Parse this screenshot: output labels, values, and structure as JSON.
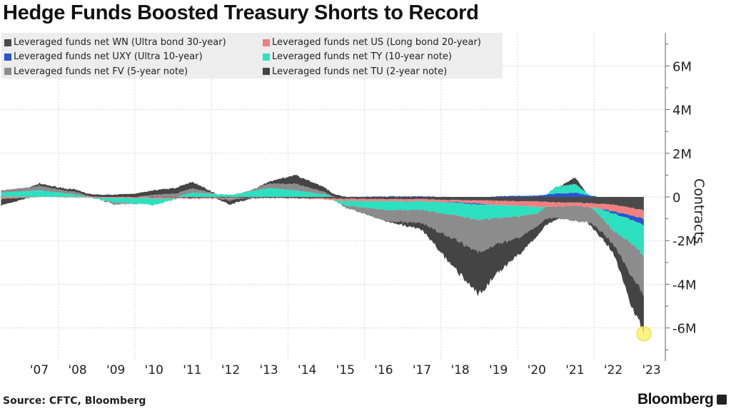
{
  "title": "Hedge Funds Boosted Treasury Shorts to Record",
  "source": "Source: CFTC, Bloomberg",
  "brand": "Bloomberg",
  "chart_data": {
    "type": "area",
    "stacked": true,
    "title": "Hedge Funds Boosted Treasury Shorts to Record",
    "xlabel": "",
    "ylabel": "Contracts",
    "ylim": [
      -7500000,
      7500000
    ],
    "xlim": [
      2006.5,
      2023.4
    ],
    "yticks": [
      6000000,
      4000000,
      2000000,
      0,
      -2000000,
      -4000000,
      -6000000
    ],
    "ytick_labels": [
      "6M",
      "4M",
      "2M",
      "0",
      "-2M",
      "-4M",
      "-6M"
    ],
    "xtick_labels": [
      "'07",
      "'08",
      "'09",
      "'10",
      "'11",
      "'12",
      "'13",
      "'14",
      "'15",
      "'16",
      "'17",
      "'18",
      "'19",
      "'20",
      "'21",
      "'22",
      "'23"
    ],
    "legend_position": "top-left",
    "grid": true,
    "annotation": "Highlighted circle at latest total (~-6.2M)",
    "x": [
      2006.5,
      2007.5,
      2008.5,
      2009.5,
      2010.5,
      2011.5,
      2012.5,
      2013.5,
      2014.2,
      2015.0,
      2015.5,
      2016.5,
      2017.5,
      2018.5,
      2019.0,
      2019.5,
      2020.0,
      2020.5,
      2021.0,
      2021.5,
      2022.0,
      2022.5,
      2023.0,
      2023.3
    ],
    "series": [
      {
        "name": "Leveraged funds net WN (Ultra bond 30-year)",
        "color": "#4a4a4a",
        "values": [
          0,
          0,
          0,
          0,
          -0.02,
          -0.03,
          -0.03,
          -0.04,
          -0.05,
          -0.06,
          -0.08,
          -0.1,
          -0.1,
          -0.15,
          -0.15,
          -0.18,
          -0.2,
          -0.2,
          -0.25,
          -0.25,
          -0.3,
          -0.35,
          -0.5,
          -0.6
        ]
      },
      {
        "name": "Leveraged funds net US (Long bond 20-year)",
        "color": "#f08080",
        "values": [
          -0.1,
          0,
          -0.03,
          -0.05,
          -0.05,
          -0.05,
          -0.03,
          -0.02,
          -0.02,
          -0.05,
          -0.1,
          -0.1,
          -0.1,
          -0.1,
          -0.15,
          -0.2,
          -0.2,
          -0.25,
          -0.2,
          -0.15,
          -0.2,
          -0.3,
          -0.35,
          -0.4
        ]
      },
      {
        "name": "Leveraged funds net UXY (Ultra 10-year)",
        "color": "#2a55d0",
        "values": [
          0,
          0,
          0,
          0,
          0,
          0,
          0,
          0,
          0,
          0,
          0,
          0.02,
          0.03,
          -0.03,
          -0.05,
          0.03,
          0.05,
          0.06,
          0.15,
          0.2,
          0.03,
          -0.1,
          -0.2,
          -0.3
        ]
      },
      {
        "name": "Leveraged funds net TY (10-year note)",
        "color": "#2de0c0",
        "values": [
          0.2,
          0.3,
          0.1,
          -0.2,
          -0.3,
          0.2,
          0.1,
          0.4,
          0.3,
          0.1,
          -0.2,
          -0.4,
          -0.4,
          -0.6,
          -0.7,
          -0.6,
          -0.5,
          -0.3,
          0.3,
          0.4,
          -0.1,
          -0.8,
          -1.1,
          -1.4
        ]
      },
      {
        "name": "Leveraged funds net FV (5-year note)",
        "color": "#8c8c8c",
        "values": [
          0.1,
          0.2,
          0.1,
          -0.1,
          0.1,
          0.2,
          -0.1,
          0.2,
          0.3,
          0.1,
          -0.1,
          -0.5,
          -0.6,
          -1.2,
          -1.5,
          -1.2,
          -1.0,
          -0.6,
          -0.5,
          -0.7,
          -0.7,
          -0.6,
          -1.5,
          -1.8
        ]
      },
      {
        "name": "Leveraged funds net TU (2-year note)",
        "color": "#444444",
        "values": [
          -0.3,
          0.1,
          0.1,
          0.1,
          0.2,
          0.3,
          -0.2,
          0.1,
          0.4,
          0.2,
          0,
          0,
          -0.3,
          -1.5,
          -1.9,
          -1.3,
          -0.8,
          -0.45,
          -0.1,
          0.3,
          -0.2,
          -0.4,
          -1.4,
          -1.7
        ]
      }
    ],
    "value_unit": "million contracts"
  }
}
